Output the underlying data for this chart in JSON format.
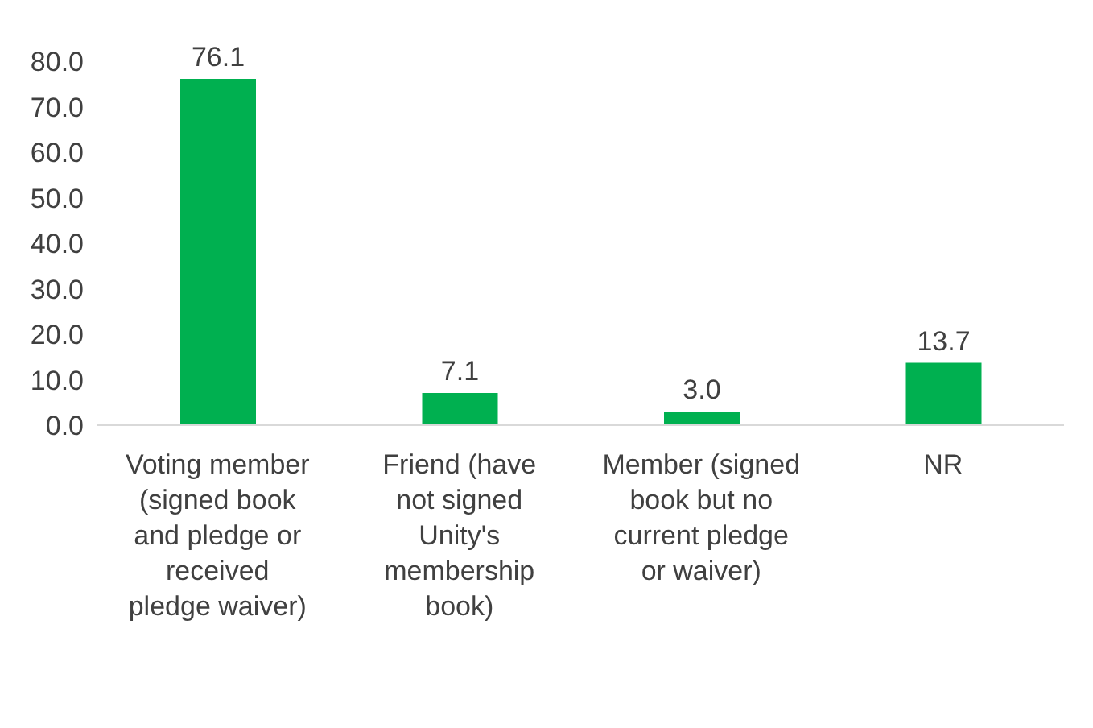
{
  "chart_data": {
    "type": "bar",
    "categories": [
      "Voting member (signed book and pledge or received pledge waiver)",
      "Friend (have not signed Unity's membership book)",
      "Member (signed book but no current pledge or waiver)",
      "NR"
    ],
    "values": [
      76.1,
      7.1,
      3.0,
      13.7
    ],
    "color": "#00b050",
    "ylim": [
      0,
      80
    ],
    "yticks": [
      {
        "value": 0,
        "label": "0.0"
      },
      {
        "value": 10,
        "label": "10.0"
      },
      {
        "value": 20,
        "label": "20.0"
      },
      {
        "value": 30,
        "label": "30.0"
      },
      {
        "value": 40,
        "label": "40.0"
      },
      {
        "value": 50,
        "label": "50.0"
      },
      {
        "value": 60,
        "label": "60.0"
      },
      {
        "value": 70,
        "label": "70.0"
      },
      {
        "value": 80,
        "label": "80.0"
      }
    ],
    "value_labels": [
      "76.1",
      "7.1",
      "3.0",
      "13.7"
    ],
    "grid": false,
    "legend": false
  }
}
